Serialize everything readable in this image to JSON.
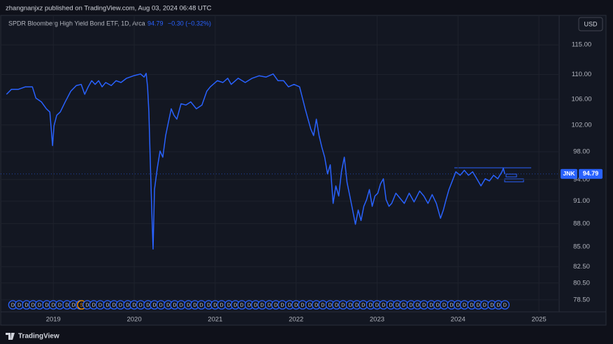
{
  "publisher": "zhangnanjxz published on TradingView.com, Aug 03, 2024 06:48 UTC",
  "footer_brand": "TradingView",
  "currency_button": "USD",
  "chart_data": {
    "type": "line",
    "title": "SPDR Bloomberg High Yield Bond ETF, 1D, Arca",
    "last_price": 94.79,
    "change_text": "−0.30 (−0.32%)",
    "symbol": "JNK",
    "log_scale": true,
    "grid": true,
    "xlim": [
      2018.35,
      2025.25
    ],
    "xticks": [
      2019,
      2020,
      2021,
      2022,
      2023,
      2024,
      2025
    ],
    "ylim": [
      77.1,
      120.2
    ],
    "yticks": [
      {
        "value": 115,
        "label": "115.00"
      },
      {
        "value": 110,
        "label": "110.00"
      },
      {
        "value": 106,
        "label": "106.00"
      },
      {
        "value": 102,
        "label": "102.00"
      },
      {
        "value": 98,
        "label": "98.00"
      },
      {
        "value": 94,
        "label": "94.00"
      },
      {
        "value": 91,
        "label": "91.00"
      },
      {
        "value": 88,
        "label": "88.00"
      },
      {
        "value": 85,
        "label": "85.00"
      },
      {
        "value": 82.5,
        "label": "82.50"
      },
      {
        "value": 80.5,
        "label": "80.50"
      },
      {
        "value": 78.5,
        "label": "78.50"
      }
    ],
    "x": [
      2018.422,
      2018.483,
      2018.569,
      2018.655,
      2018.741,
      2018.784,
      2018.853,
      2018.914,
      2018.957,
      2018.974,
      2018.991,
      2019.009,
      2019.043,
      2019.086,
      2019.147,
      2019.216,
      2019.284,
      2019.345,
      2019.388,
      2019.431,
      2019.474,
      2019.517,
      2019.56,
      2019.603,
      2019.647,
      2019.716,
      2019.776,
      2019.836,
      2019.905,
      2019.991,
      2020.078,
      2020.121,
      2020.147,
      2020.164,
      2020.181,
      2020.198,
      2020.216,
      2020.233,
      2020.25,
      2020.284,
      2020.319,
      2020.353,
      2020.388,
      2020.422,
      2020.457,
      2020.491,
      2020.526,
      2020.578,
      2020.638,
      2020.698,
      2020.767,
      2020.836,
      2020.897,
      2020.94,
      2021.026,
      2021.095,
      2021.155,
      2021.198,
      2021.284,
      2021.371,
      2021.457,
      2021.543,
      2021.629,
      2021.716,
      2021.776,
      2021.845,
      2021.905,
      2021.974,
      2022.043,
      2022.078,
      2022.112,
      2022.147,
      2022.181,
      2022.216,
      2022.25,
      2022.284,
      2022.319,
      2022.353,
      2022.388,
      2022.422,
      2022.457,
      2022.491,
      2022.526,
      2022.56,
      2022.595,
      2022.629,
      2022.664,
      2022.698,
      2022.733,
      2022.767,
      2022.802,
      2022.836,
      2022.871,
      2022.905,
      2022.94,
      2022.974,
      2023.009,
      2023.043,
      2023.078,
      2023.112,
      2023.147,
      2023.181,
      2023.233,
      2023.284,
      2023.336,
      2023.397,
      2023.457,
      2023.526,
      2023.578,
      2023.629,
      2023.681,
      2023.733,
      2023.784,
      2023.819,
      2023.853,
      2023.888,
      2023.94,
      2023.974,
      2024.026,
      2024.078,
      2024.129,
      2024.181,
      2024.233,
      2024.284,
      2024.336,
      2024.388,
      2024.44,
      2024.491,
      2024.543,
      2024.56,
      2024.578
    ],
    "series": [
      {
        "name": "JNK",
        "color": "#2962ff",
        "values": [
          106.8,
          107.6,
          107.6,
          108.0,
          108.0,
          106.2,
          105.6,
          104.5,
          104.0,
          101.4,
          98.9,
          101.9,
          103.5,
          104.0,
          105.6,
          107.3,
          108.2,
          108.4,
          106.8,
          108.0,
          109.0,
          108.4,
          109.0,
          108.0,
          108.7,
          108.2,
          109.0,
          108.7,
          109.4,
          109.8,
          110.1,
          109.6,
          110.2,
          108.0,
          104.0,
          96.6,
          89.8,
          84.7,
          92.6,
          95.6,
          98.1,
          97.2,
          100.4,
          102.4,
          104.5,
          103.5,
          102.9,
          105.3,
          105.1,
          105.6,
          104.5,
          105.1,
          107.3,
          108.0,
          109.0,
          108.7,
          109.4,
          108.4,
          109.4,
          108.7,
          109.4,
          109.8,
          109.6,
          110.1,
          109.0,
          109.0,
          108.0,
          108.4,
          108.0,
          106.2,
          104.5,
          102.9,
          101.4,
          100.4,
          102.9,
          100.4,
          98.6,
          97.2,
          94.8,
          96.1,
          90.7,
          93.1,
          91.7,
          95.1,
          97.2,
          93.6,
          91.7,
          89.8,
          87.9,
          89.8,
          88.4,
          90.3,
          91.2,
          92.6,
          90.3,
          91.7,
          92.1,
          93.4,
          94.1,
          91.2,
          90.3,
          90.7,
          92.1,
          91.4,
          90.7,
          92.1,
          90.9,
          92.4,
          91.7,
          90.7,
          91.9,
          90.7,
          88.7,
          89.8,
          91.2,
          92.6,
          94.1,
          95.1,
          94.6,
          95.3,
          94.6,
          95.1,
          94.1,
          93.1,
          94.1,
          93.8,
          94.6,
          94.1,
          95.1,
          95.6,
          94.79
        ]
      }
    ],
    "events": {
      "x": [
        2018.5,
        2018.58,
        2018.67,
        2018.75,
        2018.83,
        2018.92,
        2019.0,
        2019.08,
        2019.17,
        2019.25,
        2019.33,
        2019.35,
        2019.42,
        2019.5,
        2019.58,
        2019.67,
        2019.75,
        2019.83,
        2019.92,
        2020.0,
        2020.08,
        2020.17,
        2020.25,
        2020.33,
        2020.42,
        2020.5,
        2020.58,
        2020.67,
        2020.75,
        2020.83,
        2020.92,
        2021.0,
        2021.08,
        2021.17,
        2021.25,
        2021.33,
        2021.42,
        2021.5,
        2021.58,
        2021.67,
        2021.75,
        2021.83,
        2021.92,
        2022.0,
        2022.08,
        2022.17,
        2022.25,
        2022.33,
        2022.42,
        2022.5,
        2022.58,
        2022.67,
        2022.75,
        2022.83,
        2022.92,
        2023.0,
        2023.08,
        2023.17,
        2023.25,
        2023.33,
        2023.42,
        2023.5,
        2023.58,
        2023.67,
        2023.75,
        2023.83,
        2023.92,
        2024.0,
        2024.08,
        2024.17,
        2024.25,
        2024.33,
        2024.42,
        2024.5,
        2024.58
      ],
      "labels": [
        "D",
        "D",
        "D",
        "D",
        "D",
        "D",
        "D",
        "D",
        "D",
        "D",
        "D",
        "S",
        "D",
        "D",
        "D",
        "D",
        "D",
        "D",
        "D",
        "D",
        "D",
        "D",
        "D",
        "D",
        "D",
        "D",
        "D",
        "D",
        "D",
        "D",
        "D",
        "D",
        "D",
        "D",
        "D",
        "D",
        "D",
        "D",
        "D",
        "D",
        "D",
        "D",
        "D",
        "D",
        "D",
        "D",
        "D",
        "D",
        "D",
        "D",
        "D",
        "D",
        "D",
        "D",
        "D",
        "D",
        "D",
        "D",
        "D",
        "D",
        "D",
        "D",
        "D",
        "D",
        "D",
        "D",
        "D",
        "D",
        "D",
        "D",
        "D",
        "D",
        "D",
        "D",
        "D"
      ]
    }
  }
}
